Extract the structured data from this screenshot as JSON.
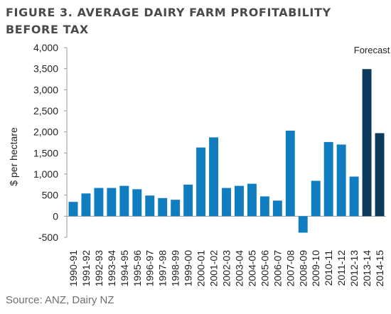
{
  "chart_data": {
    "type": "bar",
    "title_lines": [
      "FIGURE 3. AVERAGE DAIRY FARM PROFITABILITY",
      "BEFORE TAX"
    ],
    "ylabel": "$ per hectare",
    "xlabel": "",
    "ylim": [
      -500,
      4000
    ],
    "y_ticks": [
      -500,
      0,
      500,
      1000,
      1500,
      2000,
      2500,
      3000,
      3500,
      4000
    ],
    "y_tick_labels": [
      "-500",
      "0",
      "500",
      "1,000",
      "1,500",
      "2,000",
      "2,500",
      "3,000",
      "3,500",
      "4,000"
    ],
    "categories": [
      "1990-91",
      "1991-92",
      "1992-93",
      "1993-94",
      "1994-95",
      "1995-96",
      "1996-97",
      "1997-98",
      "1998-99",
      "1999-00",
      "2000-01",
      "2001-02",
      "2002-03",
      "2003-04",
      "2004-05",
      "2005-06",
      "2006-07",
      "2007-08",
      "2008-09",
      "2009-10",
      "2010-11",
      "2011-12",
      "2012-13",
      "2013-14",
      "2014-15"
    ],
    "values": [
      340,
      540,
      670,
      670,
      720,
      640,
      490,
      430,
      390,
      750,
      1630,
      1870,
      670,
      720,
      770,
      470,
      370,
      2030,
      -390,
      840,
      1760,
      1700,
      940,
      3490,
      1970
    ],
    "forecast_flags": [
      false,
      false,
      false,
      false,
      false,
      false,
      false,
      false,
      false,
      false,
      false,
      false,
      false,
      false,
      false,
      false,
      false,
      false,
      false,
      false,
      false,
      false,
      false,
      true,
      true
    ],
    "annotation": "Forecast",
    "colors": {
      "actual": "#0f7dbf",
      "forecast": "#0b3a5c",
      "axis": "#9a9a9a",
      "text": "#222222"
    },
    "grid": false,
    "legend": "none",
    "source": "Source: ANZ, Dairy NZ"
  }
}
